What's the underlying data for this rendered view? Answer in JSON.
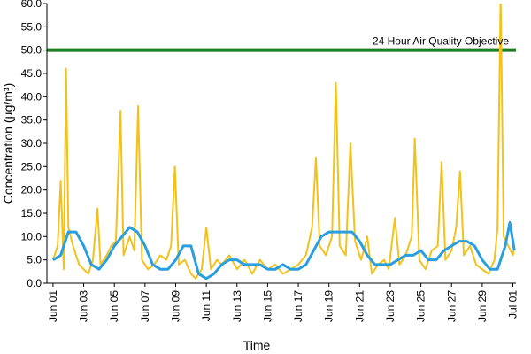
{
  "chart_data": {
    "type": "line",
    "xlabel": "Time",
    "ylabel": "Concentration (µg/m³)",
    "xlim": [
      -0.4,
      30.2
    ],
    "ylim": [
      0,
      60
    ],
    "xticks": [
      {
        "value": 0,
        "label": "Jun 01"
      },
      {
        "value": 2,
        "label": "Jun 03"
      },
      {
        "value": 4,
        "label": "Jun 05"
      },
      {
        "value": 6,
        "label": "Jun 07"
      },
      {
        "value": 8,
        "label": "Jun 09"
      },
      {
        "value": 10,
        "label": "Jun 11"
      },
      {
        "value": 12,
        "label": "Jun 13"
      },
      {
        "value": 14,
        "label": "Jun 15"
      },
      {
        "value": 16,
        "label": "Jun 17"
      },
      {
        "value": 18,
        "label": "Jun 19"
      },
      {
        "value": 20,
        "label": "Jun 21"
      },
      {
        "value": 22,
        "label": "Jun 23"
      },
      {
        "value": 24,
        "label": "Jun 25"
      },
      {
        "value": 26,
        "label": "Jun 27"
      },
      {
        "value": 28,
        "label": "Jun 29"
      },
      {
        "value": 30,
        "label": "Jul 01"
      }
    ],
    "yticks": [
      {
        "value": 0,
        "label": "0.0"
      },
      {
        "value": 5,
        "label": "5.0"
      },
      {
        "value": 10,
        "label": "10.0"
      },
      {
        "value": 15,
        "label": "15.0"
      },
      {
        "value": 20,
        "label": "20.0"
      },
      {
        "value": 25,
        "label": "25.0"
      },
      {
        "value": 30,
        "label": "30.0"
      },
      {
        "value": 35,
        "label": "35.0"
      },
      {
        "value": 40,
        "label": "40.0"
      },
      {
        "value": 45,
        "label": "45.0"
      },
      {
        "value": 50,
        "label": "50.0"
      },
      {
        "value": 55,
        "label": "55.0"
      },
      {
        "value": 60,
        "label": "60.0"
      }
    ],
    "threshold": {
      "value": 50,
      "label": "24 Hour Air Quality Objective",
      "color": "#1e7d1e"
    },
    "series": [
      {
        "color": "#f2c21b",
        "width": 2,
        "x": [
          0,
          0.3,
          0.5,
          0.7,
          0.85,
          1.0,
          1.3,
          1.7,
          2,
          2.3,
          2.6,
          2.9,
          3.1,
          3.5,
          3.8,
          4.1,
          4.4,
          4.6,
          5,
          5.3,
          5.55,
          5.8,
          6.2,
          6.6,
          7,
          7.4,
          7.7,
          7.95,
          8.2,
          8.6,
          9,
          9.3,
          9.7,
          10,
          10.3,
          10.7,
          11,
          11.5,
          12,
          12.5,
          13,
          13.5,
          14,
          14.5,
          15,
          15.5,
          16,
          16.5,
          16.9,
          17.15,
          17.4,
          17.8,
          18.2,
          18.45,
          18.7,
          19.1,
          19.4,
          19.7,
          20.1,
          20.5,
          20.8,
          21.2,
          21.6,
          21.9,
          22.3,
          22.6,
          23,
          23.4,
          23.6,
          23.9,
          24.3,
          24.7,
          25.1,
          25.35,
          25.6,
          26,
          26.3,
          26.55,
          26.8,
          27.2,
          27.6,
          28,
          28.4,
          28.8,
          29,
          29.2,
          29.4,
          29.7,
          30,
          30.1
        ],
        "values": [
          5,
          8,
          22,
          3,
          46,
          12,
          8,
          4,
          3,
          2,
          5,
          16,
          4,
          6,
          8,
          9,
          37,
          6,
          10,
          7,
          38,
          5,
          3,
          4,
          6,
          5,
          8,
          25,
          4,
          5,
          2,
          1,
          3,
          12,
          3,
          5,
          4,
          6,
          3,
          5,
          2,
          5,
          3,
          4,
          2,
          3,
          4,
          6,
          12,
          27,
          8,
          6,
          10,
          43,
          8,
          6,
          30,
          9,
          5,
          10,
          2,
          4,
          5,
          3,
          14,
          4,
          6,
          10,
          31,
          5,
          3,
          7,
          8,
          26,
          5,
          7,
          12,
          24,
          6,
          8,
          4,
          3,
          2,
          5,
          12,
          62,
          10,
          8,
          6,
          8
        ]
      },
      {
        "color": "#2a9fe0",
        "width": 3,
        "x": [
          0,
          0.5,
          1,
          1.5,
          2,
          2.5,
          3,
          3.5,
          4,
          4.5,
          5,
          5.5,
          6,
          6.5,
          7,
          7.5,
          8,
          8.5,
          9,
          9.5,
          10,
          10.5,
          11,
          11.5,
          12,
          12.5,
          13,
          13.5,
          14,
          14.5,
          15,
          15.5,
          16,
          16.5,
          17,
          17.5,
          18,
          18.5,
          19,
          19.5,
          20,
          20.5,
          21,
          21.5,
          22,
          22.5,
          23,
          23.5,
          24,
          24.5,
          25,
          25.5,
          26,
          26.5,
          27,
          27.5,
          28,
          28.5,
          29,
          29.5,
          29.8,
          30.1
        ],
        "values": [
          5,
          6,
          11,
          11,
          8,
          4,
          3,
          5,
          8,
          10,
          12,
          11,
          8,
          4,
          3,
          3,
          5,
          8,
          8,
          2,
          1,
          2,
          4,
          5,
          5,
          4,
          4,
          4,
          3,
          3,
          4,
          3,
          3,
          4,
          7,
          10,
          11,
          11,
          11,
          11,
          9,
          6,
          4,
          4,
          4,
          5,
          6,
          6,
          7,
          5,
          5,
          7,
          8,
          9,
          9,
          8,
          5,
          3,
          3,
          8,
          13,
          7
        ]
      }
    ]
  }
}
